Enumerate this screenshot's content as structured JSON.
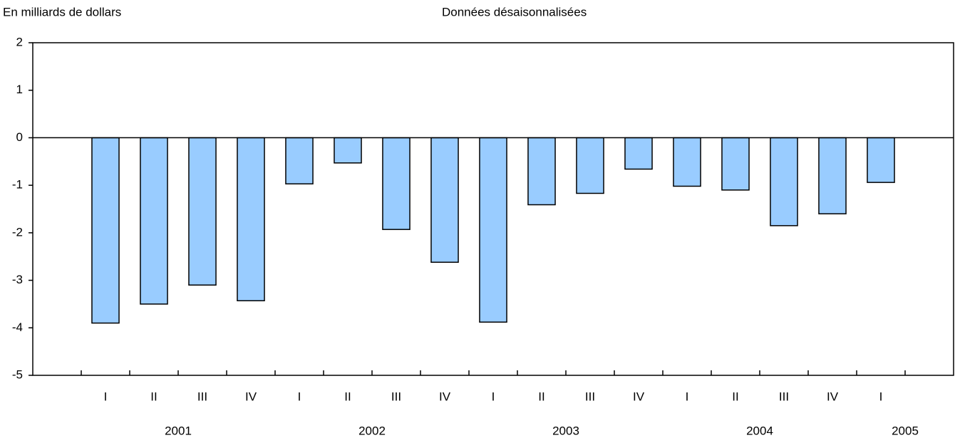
{
  "chart_data": {
    "type": "bar",
    "y_label": "En milliards de dollars",
    "subtitle": "Données désaisonnalisées",
    "categories": [
      "I",
      "II",
      "III",
      "IV",
      "I",
      "II",
      "III",
      "IV",
      "I",
      "II",
      "III",
      "IV",
      "I",
      "II",
      "III",
      "IV",
      "I"
    ],
    "years": [
      "2001",
      "2002",
      "2003",
      "2004",
      "2005"
    ],
    "values": [
      -3.9,
      -3.5,
      -3.1,
      -3.43,
      -0.97,
      -0.53,
      -1.93,
      -2.62,
      -3.88,
      -1.41,
      -1.17,
      -0.66,
      -1.02,
      -1.1,
      -1.85,
      -1.6,
      -0.94
    ],
    "color": "#99ccff",
    "ylim": [
      -5,
      2
    ],
    "yticks": [
      -5,
      -4,
      -3,
      -2,
      -1,
      0,
      1,
      2
    ]
  }
}
